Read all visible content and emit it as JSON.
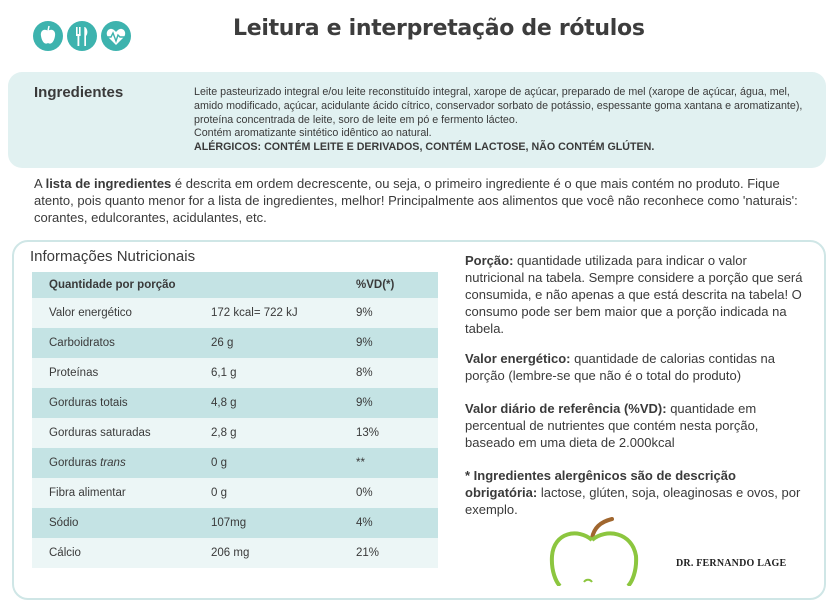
{
  "header": {
    "title": "Leitura e interpretação de rótulos",
    "logo_icons": [
      "apple-icon",
      "cutlery-icon",
      "heart-pulse-icon"
    ]
  },
  "ingredients": {
    "label": "Ingredientes",
    "text": "Leite pasteurizado integral e/ou leite reconstituído integral, xarope de açúcar, preparado de mel (xarope de açúcar, água, mel, amido modificado, açúcar, acidulante ácido cítrico, conservador sorbato de potássio, espessante goma xantana e aromatizante), proteína concentrada de leite, soro de leite em pó e fermento lácteo.",
    "aroma": "Contém aromatizante sintético idêntico ao natural.",
    "allergens": "ALÉRGICOS: CONTÉM LEITE E DERIVADOS, CONTÉM LACTOSE, NÃO CONTÉM GLÚTEN."
  },
  "explanation": {
    "pre": "A ",
    "bold": "lista de ingredientes",
    "post": " é descrita em ordem decrescente, ou seja, o primeiro ingrediente é o que mais contém no produto. Fique atento, pois quanto menor for a lista de ingredientes, melhor! Principalmente aos alimentos que você não reconhece como 'naturais': corantes, edulcorantes, acidulantes, etc."
  },
  "nutrition": {
    "title": "Informações Nutricionais",
    "header": [
      "Quantidade por porção",
      "",
      "%VD(*)"
    ],
    "rows": [
      {
        "name": "Valor energético",
        "name_italic": "",
        "qty": "172 kcal= 722 kJ",
        "vd": "9%"
      },
      {
        "name": "Carboidratos",
        "name_italic": "",
        "qty": "26 g",
        "vd": "9%"
      },
      {
        "name": "Proteínas",
        "name_italic": "",
        "qty": "6,1 g",
        "vd": "8%"
      },
      {
        "name": "Gorduras totais",
        "name_italic": "",
        "qty": "4,8 g",
        "vd": "9%"
      },
      {
        "name": "Gorduras saturadas",
        "name_italic": "",
        "qty": "2,8 g",
        "vd": "13%"
      },
      {
        "name": "Gorduras ",
        "name_italic": "trans",
        "qty": "0 g",
        "vd": "**"
      },
      {
        "name": "Fibra alimentar",
        "name_italic": "",
        "qty": "0 g",
        "vd": "0%"
      },
      {
        "name": "Sódio",
        "name_italic": "",
        "qty": "107mg",
        "vd": "4%"
      },
      {
        "name": "Cálcio",
        "name_italic": "",
        "qty": "206 mg",
        "vd": "21%"
      }
    ]
  },
  "notes": {
    "porcao": {
      "bold": "Porção:",
      "text": " quantidade utilizada para indicar o valor nutricional na tabela. Sempre considere a porção que será consumida, e não apenas a que está descrita na tabela! O consumo pode ser bem maior que a porção indicada na tabela."
    },
    "energetico": {
      "bold": "Valor energético:",
      "text": " quantidade de calorias contidas na porção (lembre-se que não é o total do produto)"
    },
    "vd": {
      "bold": "Valor diário de referência (%VD):",
      "text": " quantidade em percentual de nutrientes que contém nesta porção, baseado em uma dieta de 2.000kcal"
    },
    "alergenicos": {
      "bold": "* Ingredientes alergênicos são de descrição obrigatória:",
      "text": " lactose, glúten, soja, oleaginosas e ovos, por exemplo."
    }
  },
  "footer": {
    "author": "DR. FERNANDO LAGE",
    "decor_icon": "apple-outline-icon"
  },
  "colors": {
    "teal": "#3db3ae",
    "light_teal": "#e1f1f1",
    "row_dark": "#c4e3e4",
    "row_light": "#ecf6f6",
    "apple_green": "#8cc63f"
  }
}
